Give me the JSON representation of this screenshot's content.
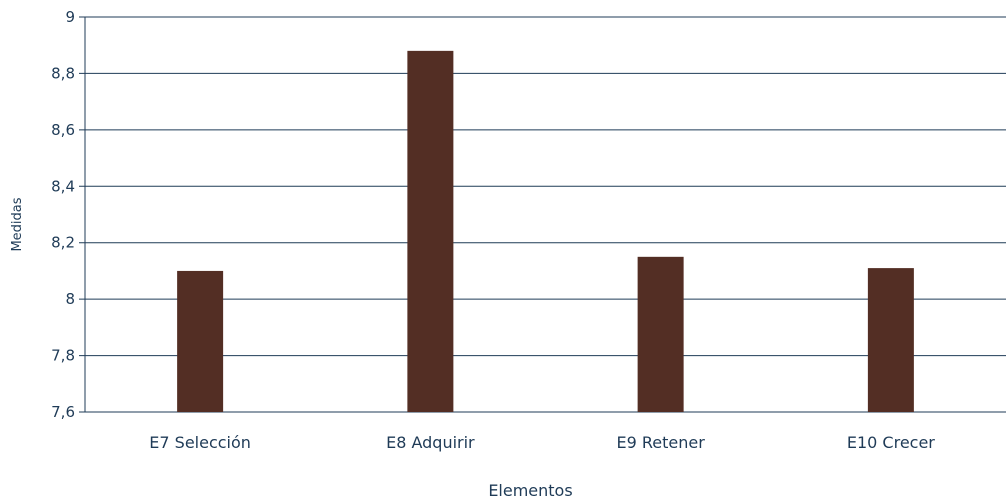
{
  "chart_data": {
    "type": "bar",
    "categories": [
      "E7 Selección",
      "E8 Adquirir",
      "E9 Retener",
      "E10 Crecer"
    ],
    "values": [
      8.1,
      8.88,
      8.15,
      8.11
    ],
    "xlabel": "Elementos",
    "ylabel": "Medidas",
    "ylim": [
      7.6,
      9
    ],
    "yticks": [
      "7,6",
      "7,8",
      "8",
      "8,2",
      "8,4",
      "8,6",
      "8,8",
      "9"
    ],
    "grid": true,
    "legend": "none"
  },
  "colors": {
    "bar": "#532e24",
    "axis": "#1f3b57",
    "text": "#1f3b57"
  }
}
